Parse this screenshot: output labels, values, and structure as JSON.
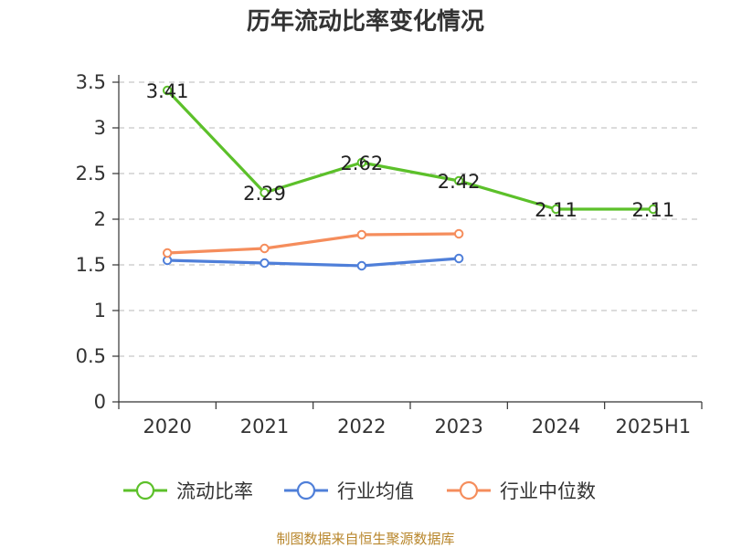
{
  "chart_data": {
    "type": "line",
    "title": "历年流动比率变化情况",
    "categories": [
      "2020",
      "2021",
      "2022",
      "2023",
      "2024",
      "2025H1"
    ],
    "ylim": [
      0,
      3.5
    ],
    "yticks": [
      "0",
      "0.5",
      "1",
      "1.5",
      "2",
      "2.5",
      "3",
      "3.5"
    ],
    "grid": true,
    "legend_position": "bottom",
    "series": [
      {
        "name": "流动比率",
        "color": "#5cc02a",
        "values": [
          3.41,
          2.29,
          2.62,
          2.42,
          2.11,
          2.11
        ],
        "labels": [
          "3.41",
          "2.29",
          "2.62",
          "2.42",
          "2.11",
          "2.11"
        ]
      },
      {
        "name": "行业均值",
        "color": "#4f7fd9",
        "values": [
          1.55,
          1.52,
          1.49,
          1.57,
          null,
          null
        ]
      },
      {
        "name": "行业中位数",
        "color": "#f58d5c",
        "values": [
          1.63,
          1.68,
          1.83,
          1.84,
          null,
          null
        ]
      }
    ]
  },
  "source": "制图数据来自恒生聚源数据库"
}
